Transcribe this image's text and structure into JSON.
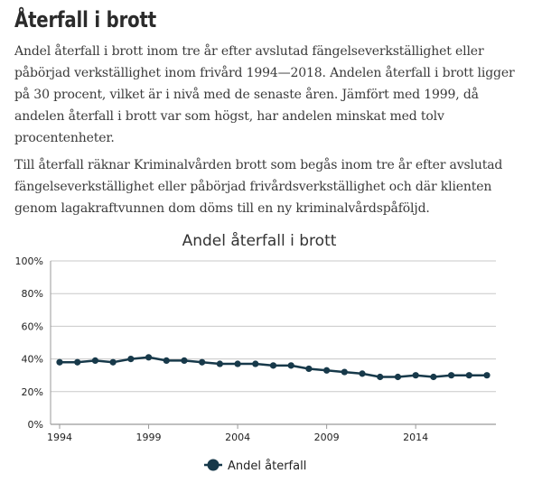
{
  "page": {
    "title": "Återfall i brott",
    "paragraphs": [
      "Andel återfall i brott inom tre år efter avslutad fängelseverkställighet eller påbörjad verkställighet inom frivård 1994—2018. Andelen återfall i brott ligger på 30 procent, vilket är i nivå med de senaste åren. Jämfört med 1999, då andelen återfall i brott var som högst, har andelen minskat med tolv procentenheter.",
      "Till återfall räknar Kriminalvården brott som begås inom tre år efter avslutad fängelseverkställighet eller påbörjad frivårdsverkställighet och där klienten genom lagakraftvunnen dom döms till en ny kriminalvårdspåföljd."
    ]
  },
  "chart_data": {
    "type": "line",
    "title": "Andel återfall i brott",
    "xlabel": "",
    "ylabel": "",
    "x": [
      1994,
      1995,
      1996,
      1997,
      1998,
      1999,
      2000,
      2001,
      2002,
      2003,
      2004,
      2005,
      2006,
      2007,
      2008,
      2009,
      2010,
      2011,
      2012,
      2013,
      2014,
      2015,
      2016,
      2017,
      2018
    ],
    "x_ticks": [
      1994,
      1999,
      2004,
      2009,
      2014
    ],
    "y_ticks": [
      "0%",
      "20%",
      "40%",
      "60%",
      "80%",
      "100%"
    ],
    "ylim": [
      0,
      100
    ],
    "grid": true,
    "legend_position": "bottom",
    "series": [
      {
        "name": "Andel återfall",
        "color": "#17394a",
        "values": [
          38,
          38,
          39,
          38,
          40,
          41,
          39,
          39,
          38,
          37,
          37,
          37,
          36,
          36,
          34,
          33,
          32,
          31,
          29,
          29,
          30,
          29,
          30,
          30,
          30
        ]
      }
    ]
  }
}
